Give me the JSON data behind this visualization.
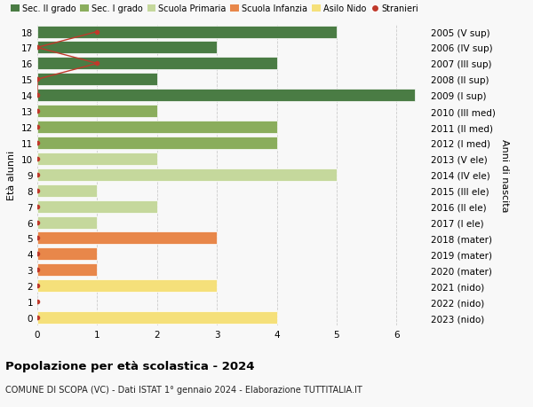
{
  "title": "Popolazione per età scolastica - 2024",
  "subtitle": "COMUNE DI SCOPA (VC) - Dati ISTAT 1° gennaio 2024 - Elaborazione TUTTITALIA.IT",
  "ylabel_left": "Età alunni",
  "ylabel_right": "Anni di nascita",
  "ages": [
    0,
    1,
    2,
    3,
    4,
    5,
    6,
    7,
    8,
    9,
    10,
    11,
    12,
    13,
    14,
    15,
    16,
    17,
    18
  ],
  "right_labels": [
    "2023 (nido)",
    "2022 (nido)",
    "2021 (nido)",
    "2020 (mater)",
    "2019 (mater)",
    "2018 (mater)",
    "2017 (I ele)",
    "2016 (II ele)",
    "2015 (III ele)",
    "2014 (IV ele)",
    "2013 (V ele)",
    "2012 (I med)",
    "2011 (II med)",
    "2010 (III med)",
    "2009 (I sup)",
    "2008 (II sup)",
    "2007 (III sup)",
    "2006 (IV sup)",
    "2005 (V sup)"
  ],
  "bar_values": [
    4,
    0,
    3,
    1,
    1,
    3,
    1,
    2,
    1,
    5,
    2,
    4,
    4,
    2,
    6.3,
    2,
    4,
    3,
    5
  ],
  "bar_colors": [
    "#f5e07a",
    "#f5e07a",
    "#f5e07a",
    "#e8874a",
    "#e8874a",
    "#e8874a",
    "#c5d89c",
    "#c5d89c",
    "#c5d89c",
    "#c5d89c",
    "#c5d89c",
    "#8aad5c",
    "#8aad5c",
    "#8aad5c",
    "#4a7c44",
    "#4a7c44",
    "#4a7c44",
    "#4a7c44",
    "#4a7c44"
  ],
  "stranieri_dot_ages": [
    0,
    1,
    2,
    3,
    4,
    5,
    6,
    7,
    8,
    9,
    10,
    11,
    12,
    13,
    14,
    15,
    16,
    17,
    18
  ],
  "stranieri_dot_x": [
    0,
    0,
    0,
    0,
    0,
    0,
    0,
    0,
    0,
    0,
    0,
    0,
    0,
    0,
    0,
    0,
    1,
    0,
    1
  ],
  "stranieri_line_ages": [
    14,
    15,
    16,
    17,
    18
  ],
  "stranieri_line_x": [
    0,
    0,
    1,
    0,
    1
  ],
  "legend_labels": [
    "Sec. II grado",
    "Sec. I grado",
    "Scuola Primaria",
    "Scuola Infanzia",
    "Asilo Nido",
    "Stranieri"
  ],
  "legend_colors": [
    "#4a7c44",
    "#8aad5c",
    "#c5d89c",
    "#e8874a",
    "#f5e07a",
    "#c0392b"
  ],
  "xlim": [
    0,
    6.5
  ],
  "ylim": [
    -0.5,
    18.5
  ],
  "xticks": [
    0,
    1,
    2,
    3,
    4,
    5,
    6
  ],
  "bg_color": "#f8f8f8",
  "grid_color": "#cccccc",
  "bar_height": 0.78
}
